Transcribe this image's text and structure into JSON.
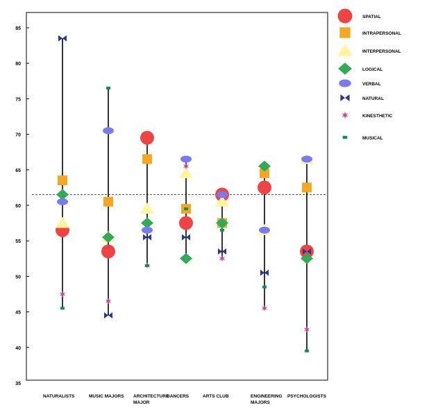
{
  "chart_data": {
    "type": "scatter",
    "title": "",
    "xlabel": "",
    "ylabel": "",
    "ylim": [
      35,
      87
    ],
    "yticks": [
      35,
      40,
      45,
      50,
      55,
      60,
      65,
      70,
      75,
      80,
      85
    ],
    "reference_line": 62,
    "categories": [
      {
        "label": [
          "NATURALISTS"
        ]
      },
      {
        "label": [
          "MUSIC MAJORS"
        ]
      },
      {
        "label": [
          "ARCHITECTURE",
          "MAJOR"
        ]
      },
      {
        "label": [
          "DANCERS"
        ]
      },
      {
        "label": [
          "ARTS CLUB"
        ]
      },
      {
        "label": [
          "ENGINEERING",
          "MAJORS"
        ]
      },
      {
        "label": [
          "PSYCHOLOGISTS"
        ]
      }
    ],
    "series": [
      {
        "name": "SPATIAL",
        "marker": "circle",
        "color": "#ee4444",
        "values": [
          57,
          54,
          70,
          58,
          62,
          63,
          54
        ]
      },
      {
        "name": "INTRAPERSONAL",
        "marker": "square",
        "color": "#f5a623",
        "values": [
          64,
          61,
          67,
          60,
          58,
          65,
          63
        ]
      },
      {
        "name": "INTERPERSONAL",
        "marker": "triangle",
        "color": "#fff59d",
        "values": [
          58,
          56,
          60,
          65,
          61,
          57,
          67
        ]
      },
      {
        "name": "LOGICAL",
        "marker": "diamond",
        "color": "#33aa55",
        "values": [
          62,
          56,
          58,
          53,
          58,
          66,
          53
        ]
      },
      {
        "name": "VERBAL",
        "marker": "ellipse",
        "color": "#7b7bf0",
        "values": [
          61,
          71,
          57,
          67,
          62,
          57,
          67
        ]
      },
      {
        "name": "NATURAL",
        "marker": "bowtie",
        "color": "#2b3a8f",
        "values": [
          84,
          45,
          56,
          56,
          54,
          51,
          54
        ]
      },
      {
        "name": "KINESTHETIC",
        "marker": "star",
        "color": "#cc4499",
        "values": [
          48,
          47,
          52,
          66,
          53,
          46,
          43
        ]
      },
      {
        "name": "MUSICAL",
        "marker": "bar",
        "color": "#109060",
        "values": [
          46,
          77,
          52,
          60,
          57,
          49,
          40
        ]
      }
    ],
    "legend_position": "right"
  }
}
